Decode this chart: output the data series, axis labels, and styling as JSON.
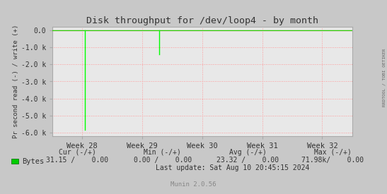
{
  "title": "Disk throughput for /dev/loop4 - by month",
  "ylabel": "Pr second read (-) / write (+)",
  "background_color": "#c8c8c8",
  "plot_bg_color": "#e8e8e8",
  "grid_color": "#ff9999",
  "xlim_weeks": [
    27.5,
    32.5
  ],
  "ylim": [
    -6200,
    200
  ],
  "yticks": [
    0,
    -1000,
    -2000,
    -3000,
    -4000,
    -5000,
    -6000
  ],
  "ytick_labels": [
    "0.0",
    "-1.0 k",
    "-2.0 k",
    "-3.0 k",
    "-4.0 k",
    "-5.0 k",
    "-6.0 k"
  ],
  "xtick_positions": [
    28,
    29,
    30,
    31,
    32
  ],
  "xtick_labels": [
    "Week 28",
    "Week 29",
    "Week 30",
    "Week 31",
    "Week 32"
  ],
  "line_color": "#00ff00",
  "zero_line_color": "#cc0000",
  "spike1_x": 28.05,
  "spike1_y": -5850,
  "spike2_x": 29.28,
  "spike2_y": -1380,
  "side_label": "RRDTOOL / TOBI OETIKER",
  "legend_label": "Bytes",
  "legend_color": "#00cc00",
  "cur_label": "Cur (-/+)",
  "cur_val": "31.15 /    0.00",
  "min_label": "Min (-/+)",
  "min_val": "0.00 /    0.00",
  "avg_label": "Avg (-/+)",
  "avg_val": "23.32 /    0.00",
  "max_label": "Max (-/+)",
  "max_val": "71.98k/    0.00",
  "last_update": "Last update: Sat Aug 10 20:45:15 2024",
  "munin_label": "Munin 2.0.56",
  "title_color": "#333333",
  "text_color": "#333333",
  "axis_color": "#aaaaaa"
}
